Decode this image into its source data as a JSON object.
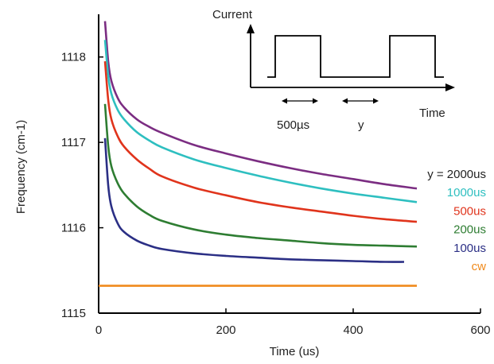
{
  "chart_data": {
    "type": "line",
    "title": "",
    "xlabel": "Time (us)",
    "ylabel": "Frequency (cm-1)",
    "xlim": [
      0,
      600
    ],
    "ylim": [
      1115,
      1118.5
    ],
    "x_ticks": [
      "0",
      "200",
      "400",
      "600"
    ],
    "y_ticks": [
      "1115",
      "1116",
      "1117",
      "1118"
    ],
    "grid": false,
    "legend": "inline-right",
    "series": [
      {
        "name": "y = 2000us",
        "color": "#7b2d82",
        "x": [
          10,
          15,
          20,
          30,
          40,
          60,
          80,
          100,
          150,
          200,
          250,
          300,
          350,
          400,
          450,
          500
        ],
        "y": [
          1118.42,
          1117.95,
          1117.72,
          1117.52,
          1117.41,
          1117.27,
          1117.18,
          1117.11,
          1116.97,
          1116.87,
          1116.78,
          1116.7,
          1116.63,
          1116.57,
          1116.51,
          1116.46
        ]
      },
      {
        "name": "1000us",
        "color": "#2ebfc0",
        "x": [
          10,
          15,
          20,
          30,
          40,
          60,
          80,
          100,
          150,
          200,
          250,
          300,
          350,
          400,
          450,
          500
        ],
        "y": [
          1118.2,
          1117.78,
          1117.57,
          1117.38,
          1117.27,
          1117.12,
          1117.02,
          1116.94,
          1116.8,
          1116.7,
          1116.61,
          1116.53,
          1116.46,
          1116.4,
          1116.35,
          1116.3
        ]
      },
      {
        "name": "500us",
        "color": "#e0341c",
        "x": [
          10,
          15,
          20,
          30,
          40,
          60,
          80,
          100,
          150,
          200,
          250,
          300,
          350,
          400,
          450,
          500
        ],
        "y": [
          1117.95,
          1117.5,
          1117.27,
          1117.07,
          1116.95,
          1116.8,
          1116.69,
          1116.6,
          1116.47,
          1116.38,
          1116.3,
          1116.24,
          1116.19,
          1116.14,
          1116.1,
          1116.07
        ]
      },
      {
        "name": "200us",
        "color": "#2e7d32",
        "x": [
          10,
          15,
          20,
          30,
          40,
          60,
          80,
          100,
          150,
          200,
          250,
          300,
          350,
          400,
          450,
          500
        ],
        "y": [
          1117.45,
          1116.96,
          1116.72,
          1116.52,
          1116.4,
          1116.25,
          1116.15,
          1116.08,
          1115.98,
          1115.92,
          1115.88,
          1115.85,
          1115.82,
          1115.8,
          1115.79,
          1115.78
        ]
      },
      {
        "name": "100us",
        "color": "#2b2f85",
        "x": [
          10,
          15,
          20,
          30,
          40,
          60,
          80,
          100,
          150,
          200,
          250,
          300,
          350,
          400,
          450,
          480
        ],
        "y": [
          1117.05,
          1116.5,
          1116.25,
          1116.05,
          1115.95,
          1115.85,
          1115.79,
          1115.75,
          1115.7,
          1115.67,
          1115.65,
          1115.63,
          1115.62,
          1115.61,
          1115.6,
          1115.6
        ]
      },
      {
        "name": "cw",
        "color": "#f08a1c",
        "x": [
          0,
          500
        ],
        "y": [
          1115.32,
          1115.32
        ]
      }
    ],
    "inset": {
      "ylabel": "Current",
      "xlabel": "Time",
      "pulse_width_label": "500µs",
      "gap_label": "y"
    }
  }
}
